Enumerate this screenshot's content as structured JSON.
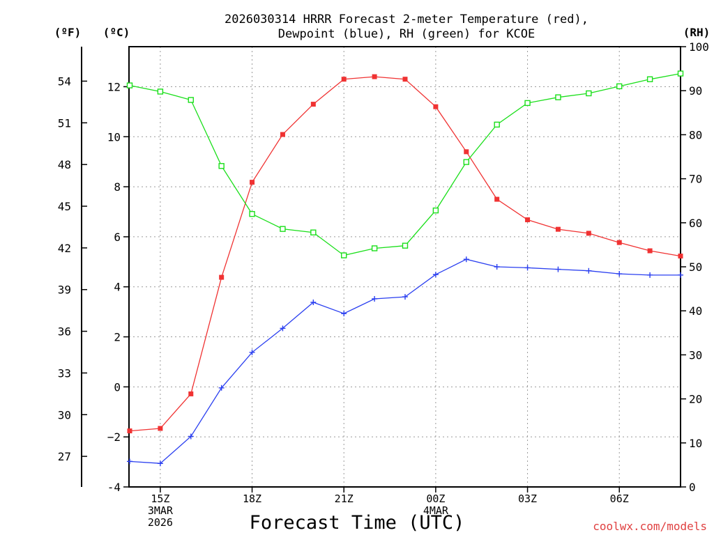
{
  "chart_data": {
    "type": "line",
    "title_line1": "2026030314 HRRR Forecast 2-meter Temperature (red),",
    "title_line2": "Dewpoint (blue), RH (green) for KCOE",
    "xlabel": "Forecast Time (UTC)",
    "left_axis_f_label": "(ºF)",
    "left_axis_c_label": "(ºC)",
    "right_axis_label": "(RH)",
    "watermark": "coolwx.com/models",
    "hours": [
      14,
      15,
      16,
      17,
      18,
      19,
      20,
      21,
      22,
      23,
      24,
      25,
      26,
      27,
      28,
      29,
      30,
      31,
      32
    ],
    "xlim": [
      14,
      32
    ],
    "x_ticks": [
      {
        "hour": 15,
        "lines": [
          "15Z",
          "3MAR",
          "2026"
        ]
      },
      {
        "hour": 18,
        "lines": [
          "18Z"
        ]
      },
      {
        "hour": 21,
        "lines": [
          "21Z"
        ]
      },
      {
        "hour": 24,
        "lines": [
          "00Z",
          "4MAR"
        ]
      },
      {
        "hour": 27,
        "lines": [
          "03Z"
        ]
      },
      {
        "hour": 30,
        "lines": [
          "06Z"
        ]
      }
    ],
    "c_axis": {
      "ylim": [
        -4,
        13.6
      ],
      "ticks": [
        "-4",
        "−2",
        "0",
        "2",
        "4",
        "6",
        "8",
        "10",
        "12"
      ]
    },
    "f_axis": {
      "ticks": [
        "27",
        "30",
        "33",
        "36",
        "39",
        "42",
        "45",
        "48",
        "51",
        "54"
      ]
    },
    "rh_axis": {
      "ylim": [
        0,
        100
      ],
      "ticks": [
        "0",
        "10",
        "20",
        "30",
        "40",
        "50",
        "60",
        "70",
        "80",
        "90",
        "100"
      ]
    },
    "series": [
      {
        "key": "temperature",
        "axis": "c",
        "color": "#f03232",
        "marker": "filled-square",
        "values": [
          -1.76,
          -1.66,
          -0.28,
          4.38,
          8.18,
          10.09,
          11.3,
          12.3,
          12.4,
          12.3,
          11.2,
          9.4,
          7.5,
          6.68,
          6.3,
          6.14,
          5.77,
          5.44,
          5.23
        ]
      },
      {
        "key": "dewpoint",
        "axis": "c",
        "color": "#2a3ff0",
        "marker": "plus",
        "values": [
          -2.98,
          -3.06,
          -1.98,
          -0.04,
          1.38,
          2.34,
          3.38,
          2.93,
          3.52,
          3.6,
          4.49,
          5.1,
          4.8,
          4.76,
          4.7,
          4.64,
          4.52,
          4.47,
          4.47
        ]
      },
      {
        "key": "rh",
        "axis": "rh",
        "color": "#1adf1a",
        "marker": "open-square",
        "values": [
          91.2,
          89.8,
          87.9,
          72.9,
          62.0,
          58.6,
          57.8,
          52.6,
          54.2,
          54.8,
          62.8,
          73.8,
          82.3,
          87.2,
          88.5,
          89.4,
          91.0,
          92.6,
          93.9
        ]
      }
    ]
  }
}
